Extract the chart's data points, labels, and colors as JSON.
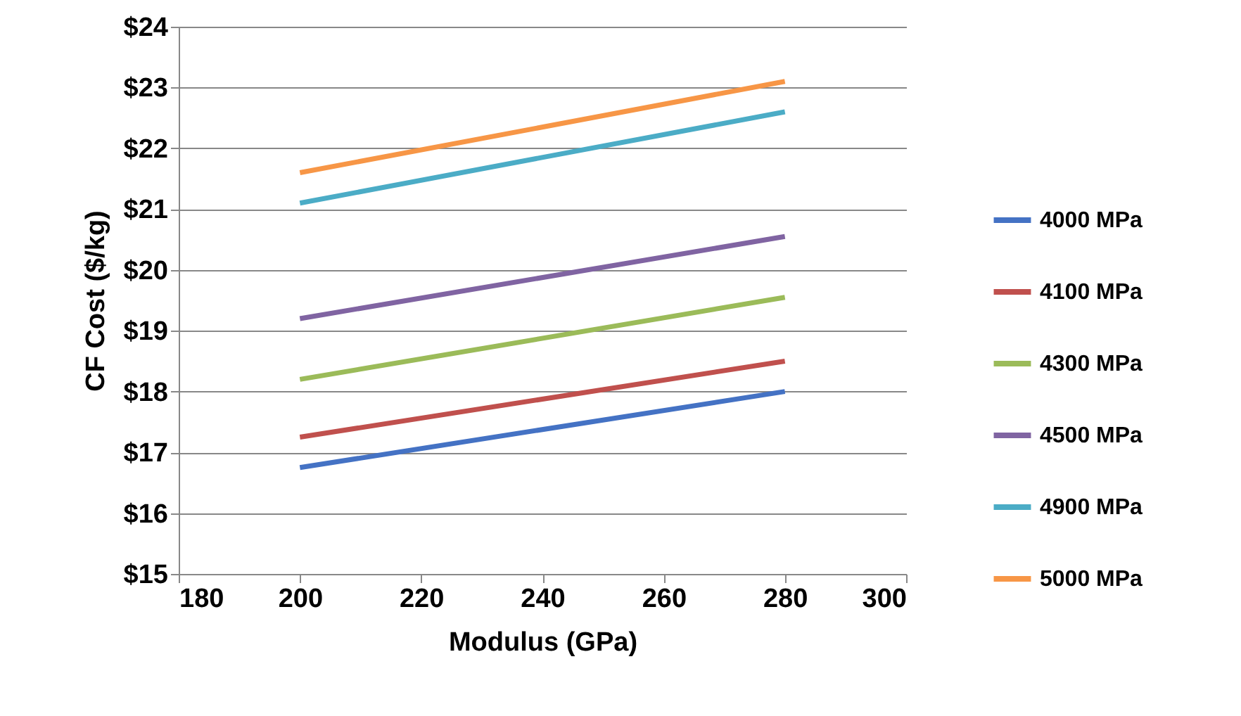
{
  "chart_data": {
    "type": "line",
    "xlabel": "Modulus (GPa)",
    "ylabel": "CF Cost ($/kg)",
    "x": [
      200,
      280
    ],
    "series": [
      {
        "name": "4000 MPa",
        "color": "#4472c4",
        "values": [
          16.75,
          18.0
        ]
      },
      {
        "name": "4100 MPa",
        "color": "#c0504d",
        "values": [
          17.25,
          18.5
        ]
      },
      {
        "name": "4300 MPa",
        "color": "#9bbb59",
        "values": [
          18.2,
          19.55
        ]
      },
      {
        "name": "4500 MPa",
        "color": "#8064a2",
        "values": [
          19.2,
          20.55
        ]
      },
      {
        "name": "4900 MPa",
        "color": "#4bacc6",
        "values": [
          21.1,
          22.6
        ]
      },
      {
        "name": "5000 MPa",
        "color": "#f79646",
        "values": [
          21.6,
          23.1
        ]
      }
    ],
    "xlim": [
      180,
      300
    ],
    "xticks": [
      180,
      200,
      220,
      240,
      260,
      280,
      300
    ],
    "ylim": [
      15,
      24
    ],
    "yticks": [
      {
        "value": 15,
        "label": "$15"
      },
      {
        "value": 16,
        "label": "$16"
      },
      {
        "value": 17,
        "label": "$17"
      },
      {
        "value": 18,
        "label": "$18"
      },
      {
        "value": 19,
        "label": "$19"
      },
      {
        "value": 20,
        "label": "$20"
      },
      {
        "value": 21,
        "label": "$21"
      },
      {
        "value": 22,
        "label": "$22"
      },
      {
        "value": 23,
        "label": "$23"
      },
      {
        "value": 24,
        "label": "$24"
      }
    ],
    "grid": "y",
    "legend": "right",
    "marker": "none",
    "line_style": "solid"
  }
}
